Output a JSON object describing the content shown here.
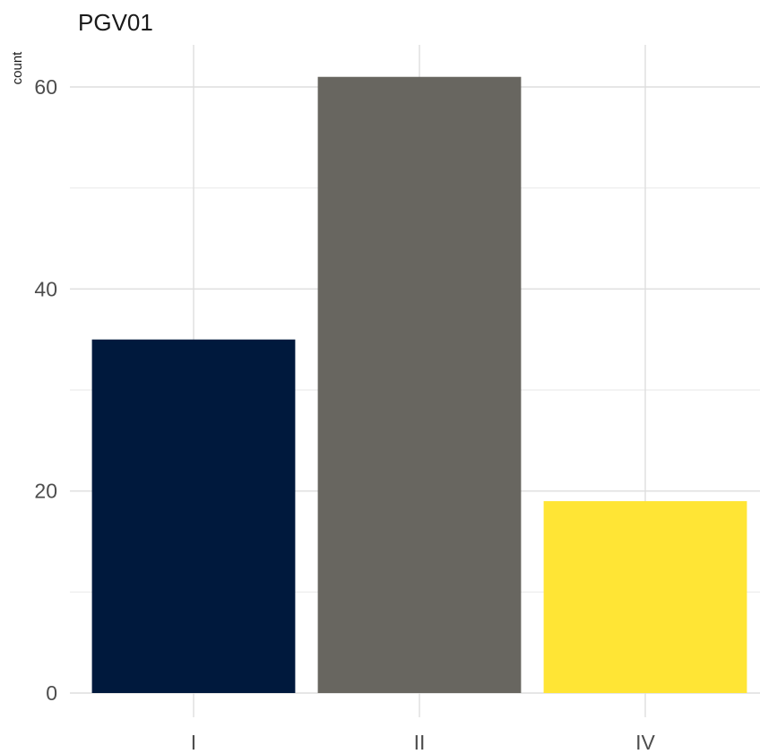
{
  "chart_data": {
    "type": "bar",
    "title": "PGV01",
    "xlabel": "",
    "ylabel": "count",
    "categories": [
      "I",
      "II",
      "IV"
    ],
    "values": [
      35,
      61,
      19
    ],
    "colors": [
      "#00193d",
      "#686660",
      "#ffe535"
    ],
    "ylim": [
      0,
      64
    ],
    "yticks": [
      0,
      20,
      40,
      60
    ],
    "grid": true,
    "legend": "none"
  }
}
